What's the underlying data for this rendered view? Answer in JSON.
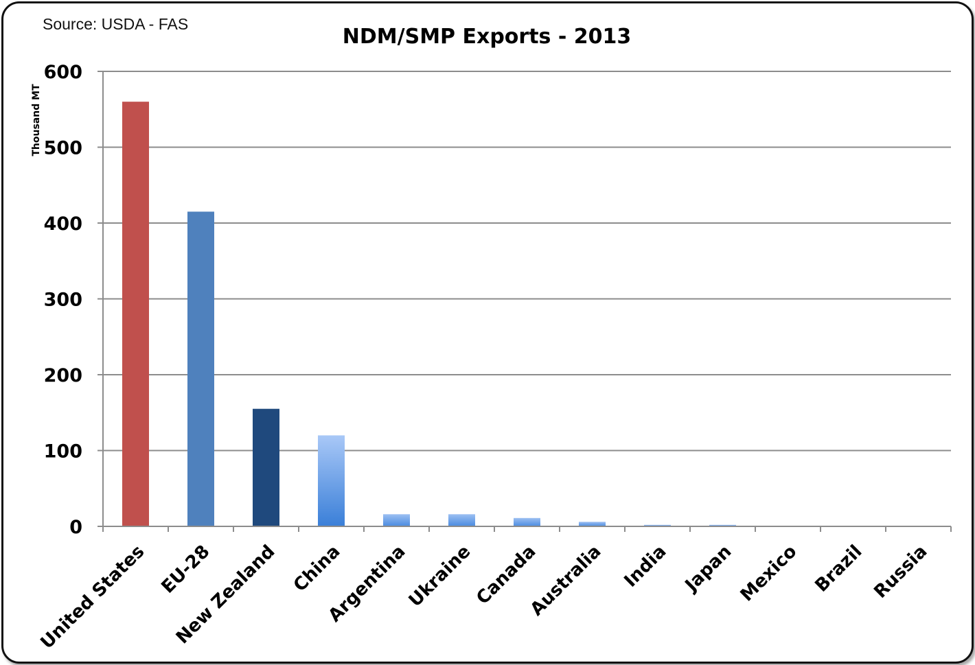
{
  "source_note": "Source: USDA - FAS",
  "chart_data": {
    "type": "bar",
    "title": "NDM/SMP Exports - 2013",
    "xlabel": "",
    "ylabel": "Thousand MT",
    "ylim": [
      0,
      600
    ],
    "yticks": [
      0,
      100,
      200,
      300,
      400,
      500,
      600
    ],
    "grid": true,
    "categories": [
      "United States",
      "EU-28",
      "New Zealand",
      "China",
      "Argentina",
      "Ukraine",
      "Canada",
      "Australia",
      "India",
      "Japan",
      "Mexico",
      "Brazil",
      "Russia"
    ],
    "values": [
      560,
      415,
      155,
      120,
      16,
      16,
      11,
      6,
      2,
      2,
      0,
      0,
      0
    ],
    "bar_colors": [
      "#c0504d",
      "#4f81bd",
      "#1f497d",
      "#6fa3e6",
      "#5b95e0",
      "#5b95e0",
      "#5b95e0",
      "#5b95e0",
      "#5b95e0",
      "#5b95e0",
      "#5b95e0",
      "#5b95e0",
      "#5b95e0"
    ]
  }
}
